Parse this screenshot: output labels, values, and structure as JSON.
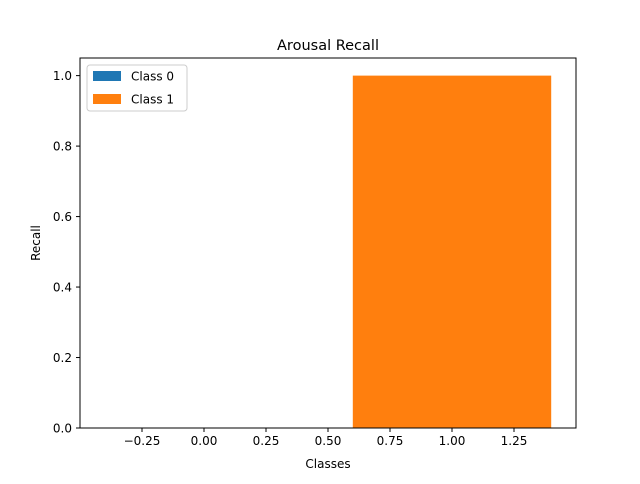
{
  "chart_data": {
    "type": "bar",
    "title": "Arousal Recall",
    "xlabel": "Classes",
    "ylabel": "Recall",
    "xlim": [
      -0.5,
      1.5
    ],
    "ylim": [
      0,
      1.05
    ],
    "x_ticks": [
      -0.25,
      0.0,
      0.25,
      0.5,
      0.75,
      1.0,
      1.25
    ],
    "x_tick_labels": [
      "−0.25",
      "0.00",
      "0.25",
      "0.50",
      "0.75",
      "1.00",
      "1.25"
    ],
    "y_ticks": [
      0.0,
      0.2,
      0.4,
      0.6,
      0.8,
      1.0
    ],
    "y_tick_labels": [
      "0.0",
      "0.2",
      "0.4",
      "0.6",
      "0.8",
      "1.0"
    ],
    "grid": false,
    "legend_position": "upper-left",
    "bar_width": 0.8,
    "series": [
      {
        "name": "Class 0",
        "x": 0,
        "value": 0.0,
        "color": "#1f77b4"
      },
      {
        "name": "Class 1",
        "x": 1,
        "value": 1.0,
        "color": "#ff7f0e"
      }
    ]
  }
}
